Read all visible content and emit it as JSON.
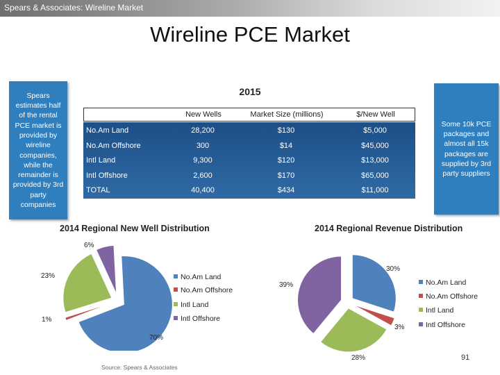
{
  "header": {
    "bar_text": "Spears & Associates:  Wireline Market",
    "title": "Wireline PCE Market"
  },
  "notes": {
    "left": "Spears estimates half of the rental PCE market is provided by wireline companies, while the remainder is provided by 3rd party companies",
    "right": "Some 10k PCE packages and almost all 15k packages are supplied by 3rd party suppliers"
  },
  "table": {
    "title": "2015",
    "columns": [
      "New Wells",
      "Market Size (millions)",
      "$/New Well"
    ],
    "rows": [
      {
        "label": "No.Am Land",
        "values": [
          "28,200",
          "$130",
          "$5,000"
        ]
      },
      {
        "label": "No.Am Offshore",
        "values": [
          "300",
          "$14",
          "$45,000"
        ]
      },
      {
        "label": "Intl Land",
        "values": [
          "9,300",
          "$120",
          "$13,000"
        ]
      },
      {
        "label": "Intl Offshore",
        "values": [
          "2,600",
          "$170",
          "$65,000"
        ]
      },
      {
        "label": "TOTAL",
        "values": [
          "40,400",
          "$434",
          "$11,000"
        ]
      }
    ]
  },
  "colors": {
    "no_am_land": "#4f81bd",
    "no_am_offshore": "#c0504d",
    "intl_land": "#9bbb59",
    "intl_offshore": "#8064a2",
    "note_fill": "#2f7fbf",
    "table_fill": "#234f84"
  },
  "chart_data": [
    {
      "type": "pie",
      "title": "2014 Regional New Well Distribution",
      "categories": [
        "No.Am Land",
        "No.Am Offshore",
        "Intl Land",
        "Intl Offshore"
      ],
      "values": [
        70,
        1,
        23,
        6
      ],
      "value_labels": [
        "70%",
        "1%",
        "23%",
        "6%"
      ],
      "exploded": true,
      "legend": "right"
    },
    {
      "type": "pie",
      "title": "2014 Regional Revenue Distribution",
      "categories": [
        "No.Am Land",
        "No.Am Offshore",
        "Intl Land",
        "Intl Offshore"
      ],
      "values": [
        30,
        3,
        28,
        39
      ],
      "value_labels": [
        "30%",
        "3%",
        "28%",
        "39%"
      ],
      "exploded": true,
      "legend": "right"
    }
  ],
  "footer": {
    "source": "Source: Spears & Associates",
    "page_number": "91"
  }
}
